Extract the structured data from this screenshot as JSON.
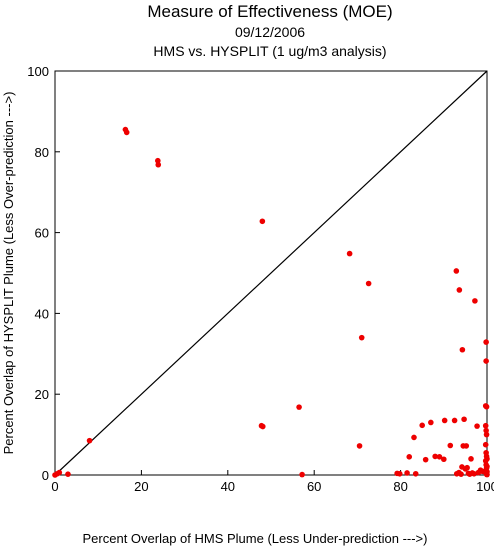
{
  "chart_data": {
    "type": "scatter",
    "title": "Measure of Effectiveness (MOE)",
    "subtitle": "09/12/2006",
    "subtitle2": "HMS vs. HYSPLIT  (1 ug/m3 analysis)",
    "xlabel": "Percent Overlap of HMS Plume (Less Under-prediction --->)",
    "ylabel": "Percent Overlap of HYSPLIT Plume (Less Over-prediction --->)",
    "xlim": [
      0,
      100
    ],
    "ylim": [
      0,
      100
    ],
    "x_ticks": [
      0,
      20,
      40,
      60,
      80,
      100
    ],
    "y_ticks": [
      0,
      20,
      40,
      60,
      80,
      100
    ],
    "x_tick_labels": [
      "0",
      "20",
      "40",
      "60",
      "80",
      "100"
    ],
    "y_tick_labels": [
      "0",
      "20",
      "40",
      "60",
      "80",
      "100"
    ],
    "grid": false,
    "reference_line": "y = x",
    "marker_color": "#ee0000",
    "line_color": "#000000",
    "points": [
      {
        "x": 0,
        "y": 0
      },
      {
        "x": 0.5,
        "y": 0.3
      },
      {
        "x": 1,
        "y": 0.6
      },
      {
        "x": 3,
        "y": 0.2
      },
      {
        "x": 8,
        "y": 8.5
      },
      {
        "x": 16.3,
        "y": 85.5
      },
      {
        "x": 16.6,
        "y": 84.8
      },
      {
        "x": 23.8,
        "y": 77.8
      },
      {
        "x": 23.9,
        "y": 76.8
      },
      {
        "x": 48,
        "y": 62.8
      },
      {
        "x": 47.8,
        "y": 12.2
      },
      {
        "x": 48.1,
        "y": 12
      },
      {
        "x": 56.5,
        "y": 16.8
      },
      {
        "x": 57.2,
        "y": 0.1
      },
      {
        "x": 68.2,
        "y": 54.8
      },
      {
        "x": 72.6,
        "y": 47.4
      },
      {
        "x": 71,
        "y": 34
      },
      {
        "x": 70.5,
        "y": 7.2
      },
      {
        "x": 79.2,
        "y": 0.4
      },
      {
        "x": 79.8,
        "y": 0.3
      },
      {
        "x": 81.5,
        "y": 0.5
      },
      {
        "x": 83.5,
        "y": 0.3
      },
      {
        "x": 82,
        "y": 4.5
      },
      {
        "x": 83.1,
        "y": 9.3
      },
      {
        "x": 85,
        "y": 12.3
      },
      {
        "x": 85.8,
        "y": 3.8
      },
      {
        "x": 87,
        "y": 13
      },
      {
        "x": 88,
        "y": 4.6
      },
      {
        "x": 89,
        "y": 4.5
      },
      {
        "x": 90,
        "y": 3.9
      },
      {
        "x": 90.2,
        "y": 13.5
      },
      {
        "x": 91.5,
        "y": 7.3
      },
      {
        "x": 92.5,
        "y": 13.5
      },
      {
        "x": 92.9,
        "y": 50.5
      },
      {
        "x": 93.6,
        "y": 45.8
      },
      {
        "x": 94.3,
        "y": 31
      },
      {
        "x": 97.2,
        "y": 43.1
      },
      {
        "x": 93,
        "y": 0.3
      },
      {
        "x": 93.5,
        "y": 0.6
      },
      {
        "x": 94,
        "y": 0.2
      },
      {
        "x": 94.2,
        "y": 2
      },
      {
        "x": 94.5,
        "y": 7.2
      },
      {
        "x": 94.7,
        "y": 13.8
      },
      {
        "x": 95,
        "y": 1.5
      },
      {
        "x": 95.2,
        "y": 7.2
      },
      {
        "x": 95.4,
        "y": 1.8
      },
      {
        "x": 95.7,
        "y": 0.4
      },
      {
        "x": 96,
        "y": 0.2
      },
      {
        "x": 96.3,
        "y": 4
      },
      {
        "x": 96.6,
        "y": 0.5
      },
      {
        "x": 97,
        "y": 0.3
      },
      {
        "x": 97.7,
        "y": 12.1
      },
      {
        "x": 98,
        "y": 0.6
      },
      {
        "x": 98.5,
        "y": 1.2
      },
      {
        "x": 99,
        "y": 0.9
      },
      {
        "x": 99.8,
        "y": 32.9
      },
      {
        "x": 99.8,
        "y": 28.2
      },
      {
        "x": 99.7,
        "y": 17.1
      },
      {
        "x": 99.9,
        "y": 16.9
      },
      {
        "x": 99.7,
        "y": 12.2
      },
      {
        "x": 99.8,
        "y": 11
      },
      {
        "x": 99.9,
        "y": 10
      },
      {
        "x": 99.7,
        "y": 7.5
      },
      {
        "x": 99.8,
        "y": 5.5
      },
      {
        "x": 99.9,
        "y": 4.6
      },
      {
        "x": 99.7,
        "y": 3.5
      },
      {
        "x": 99.8,
        "y": 2.5
      },
      {
        "x": 99.9,
        "y": 1.7
      },
      {
        "x": 99.7,
        "y": 1
      },
      {
        "x": 99.8,
        "y": 0.5
      },
      {
        "x": 99.9,
        "y": 0.2
      },
      {
        "x": 100,
        "y": 0.1
      },
      {
        "x": 100,
        "y": 0.8
      },
      {
        "x": 100,
        "y": 2.1
      },
      {
        "x": 100,
        "y": 4
      }
    ]
  }
}
